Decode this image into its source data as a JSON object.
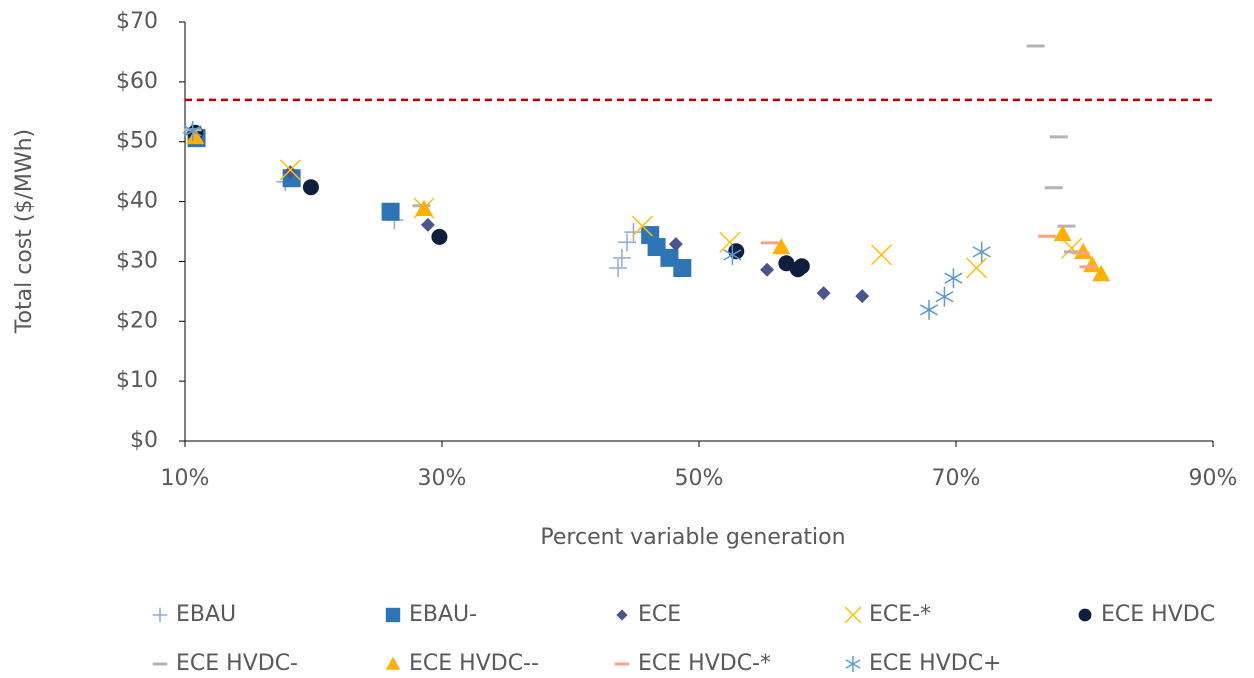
{
  "chart_data": {
    "type": "scatter",
    "xlabel": "Percent variable generation",
    "ylabel": "Total cost ($/MWh)",
    "xlim": [
      10,
      90
    ],
    "ylim": [
      0,
      70
    ],
    "xticks": [
      {
        "value": 10,
        "label": "10%"
      },
      {
        "value": 30,
        "label": "30%"
      },
      {
        "value": 50,
        "label": "50%"
      },
      {
        "value": 70,
        "label": "70%"
      },
      {
        "value": 90,
        "label": "90%"
      }
    ],
    "yticks": [
      {
        "value": 0,
        "label": "$0"
      },
      {
        "value": 10,
        "label": "$10"
      },
      {
        "value": 20,
        "label": "$20"
      },
      {
        "value": 30,
        "label": "$30"
      },
      {
        "value": 40,
        "label": "$40"
      },
      {
        "value": 50,
        "label": "$50"
      },
      {
        "value": 60,
        "label": "$60"
      },
      {
        "value": 70,
        "label": "$70"
      }
    ],
    "hline": {
      "value": 57,
      "color": "#c00000"
    },
    "series": [
      {
        "name": "EBAU",
        "marker": "plus",
        "color": "#8faadc",
        "x": [
          10.5,
          17.8,
          26.3,
          43.7,
          44.0,
          44.4,
          44.9
        ],
        "values": [
          51.5,
          43.3,
          36.9,
          28.9,
          30.6,
          33.2,
          34.9
        ]
      },
      {
        "name": "EBAU-",
        "marker": "square",
        "color": "#2e75b6",
        "x": [
          10.9,
          18.3,
          26.0,
          46.2,
          46.7,
          47.7,
          48.7
        ],
        "values": [
          50.6,
          43.9,
          38.3,
          34.4,
          32.4,
          30.6,
          28.9
        ]
      },
      {
        "name": "ECE",
        "marker": "diamond",
        "color": "#4a5590",
        "x": [
          18.2,
          28.9,
          48.2,
          55.3,
          59.7,
          62.7
        ],
        "values": [
          44.9,
          36.1,
          32.9,
          28.6,
          24.7,
          24.2
        ]
      },
      {
        "name": "ECE-*",
        "marker": "x",
        "color": "#ffc000",
        "x": [
          18.2,
          28.6,
          45.6,
          52.4,
          64.2,
          71.6,
          79.0
        ],
        "values": [
          45.3,
          38.9,
          35.9,
          33.2,
          31.1,
          28.9,
          32.2
        ]
      },
      {
        "name": "ECE HVDC",
        "marker": "circle",
        "color": "#0d1f3c",
        "x": [
          10.8,
          19.8,
          29.8,
          52.9,
          56.8,
          57.7,
          58.0
        ],
        "values": [
          51.5,
          42.4,
          34.1,
          31.7,
          29.7,
          28.7,
          29.2
        ]
      },
      {
        "name": "ECE HVDC-",
        "marker": "dash",
        "color": "#b4b4b4",
        "x": [
          10.6,
          28.4,
          76.2,
          78.0,
          77.6,
          78.6,
          79.1
        ],
        "values": [
          52.0,
          39.3,
          66.0,
          50.8,
          42.3,
          35.9,
          31.6
        ]
      },
      {
        "name": "ECE HVDC--",
        "marker": "triangle",
        "color": "#ffb000",
        "x": [
          10.8,
          28.6,
          56.4,
          78.3,
          79.9,
          80.6,
          81.3
        ],
        "values": [
          50.8,
          38.8,
          32.4,
          34.6,
          31.6,
          29.4,
          27.9
        ]
      },
      {
        "name": "ECE HVDC-*",
        "marker": "dash",
        "color": "#f4a582",
        "x": [
          55.5,
          77.1,
          79.7,
          80.3
        ],
        "values": [
          33.1,
          34.2,
          31.4,
          29.1
        ]
      },
      {
        "name": "ECE HVDC+",
        "marker": "asterisk",
        "color": "#5b9bd5",
        "x": [
          10.6,
          52.6,
          67.9,
          69.1,
          69.8,
          72.0
        ],
        "values": [
          51.8,
          31.1,
          21.9,
          24.1,
          27.2,
          31.6
        ]
      }
    ]
  }
}
